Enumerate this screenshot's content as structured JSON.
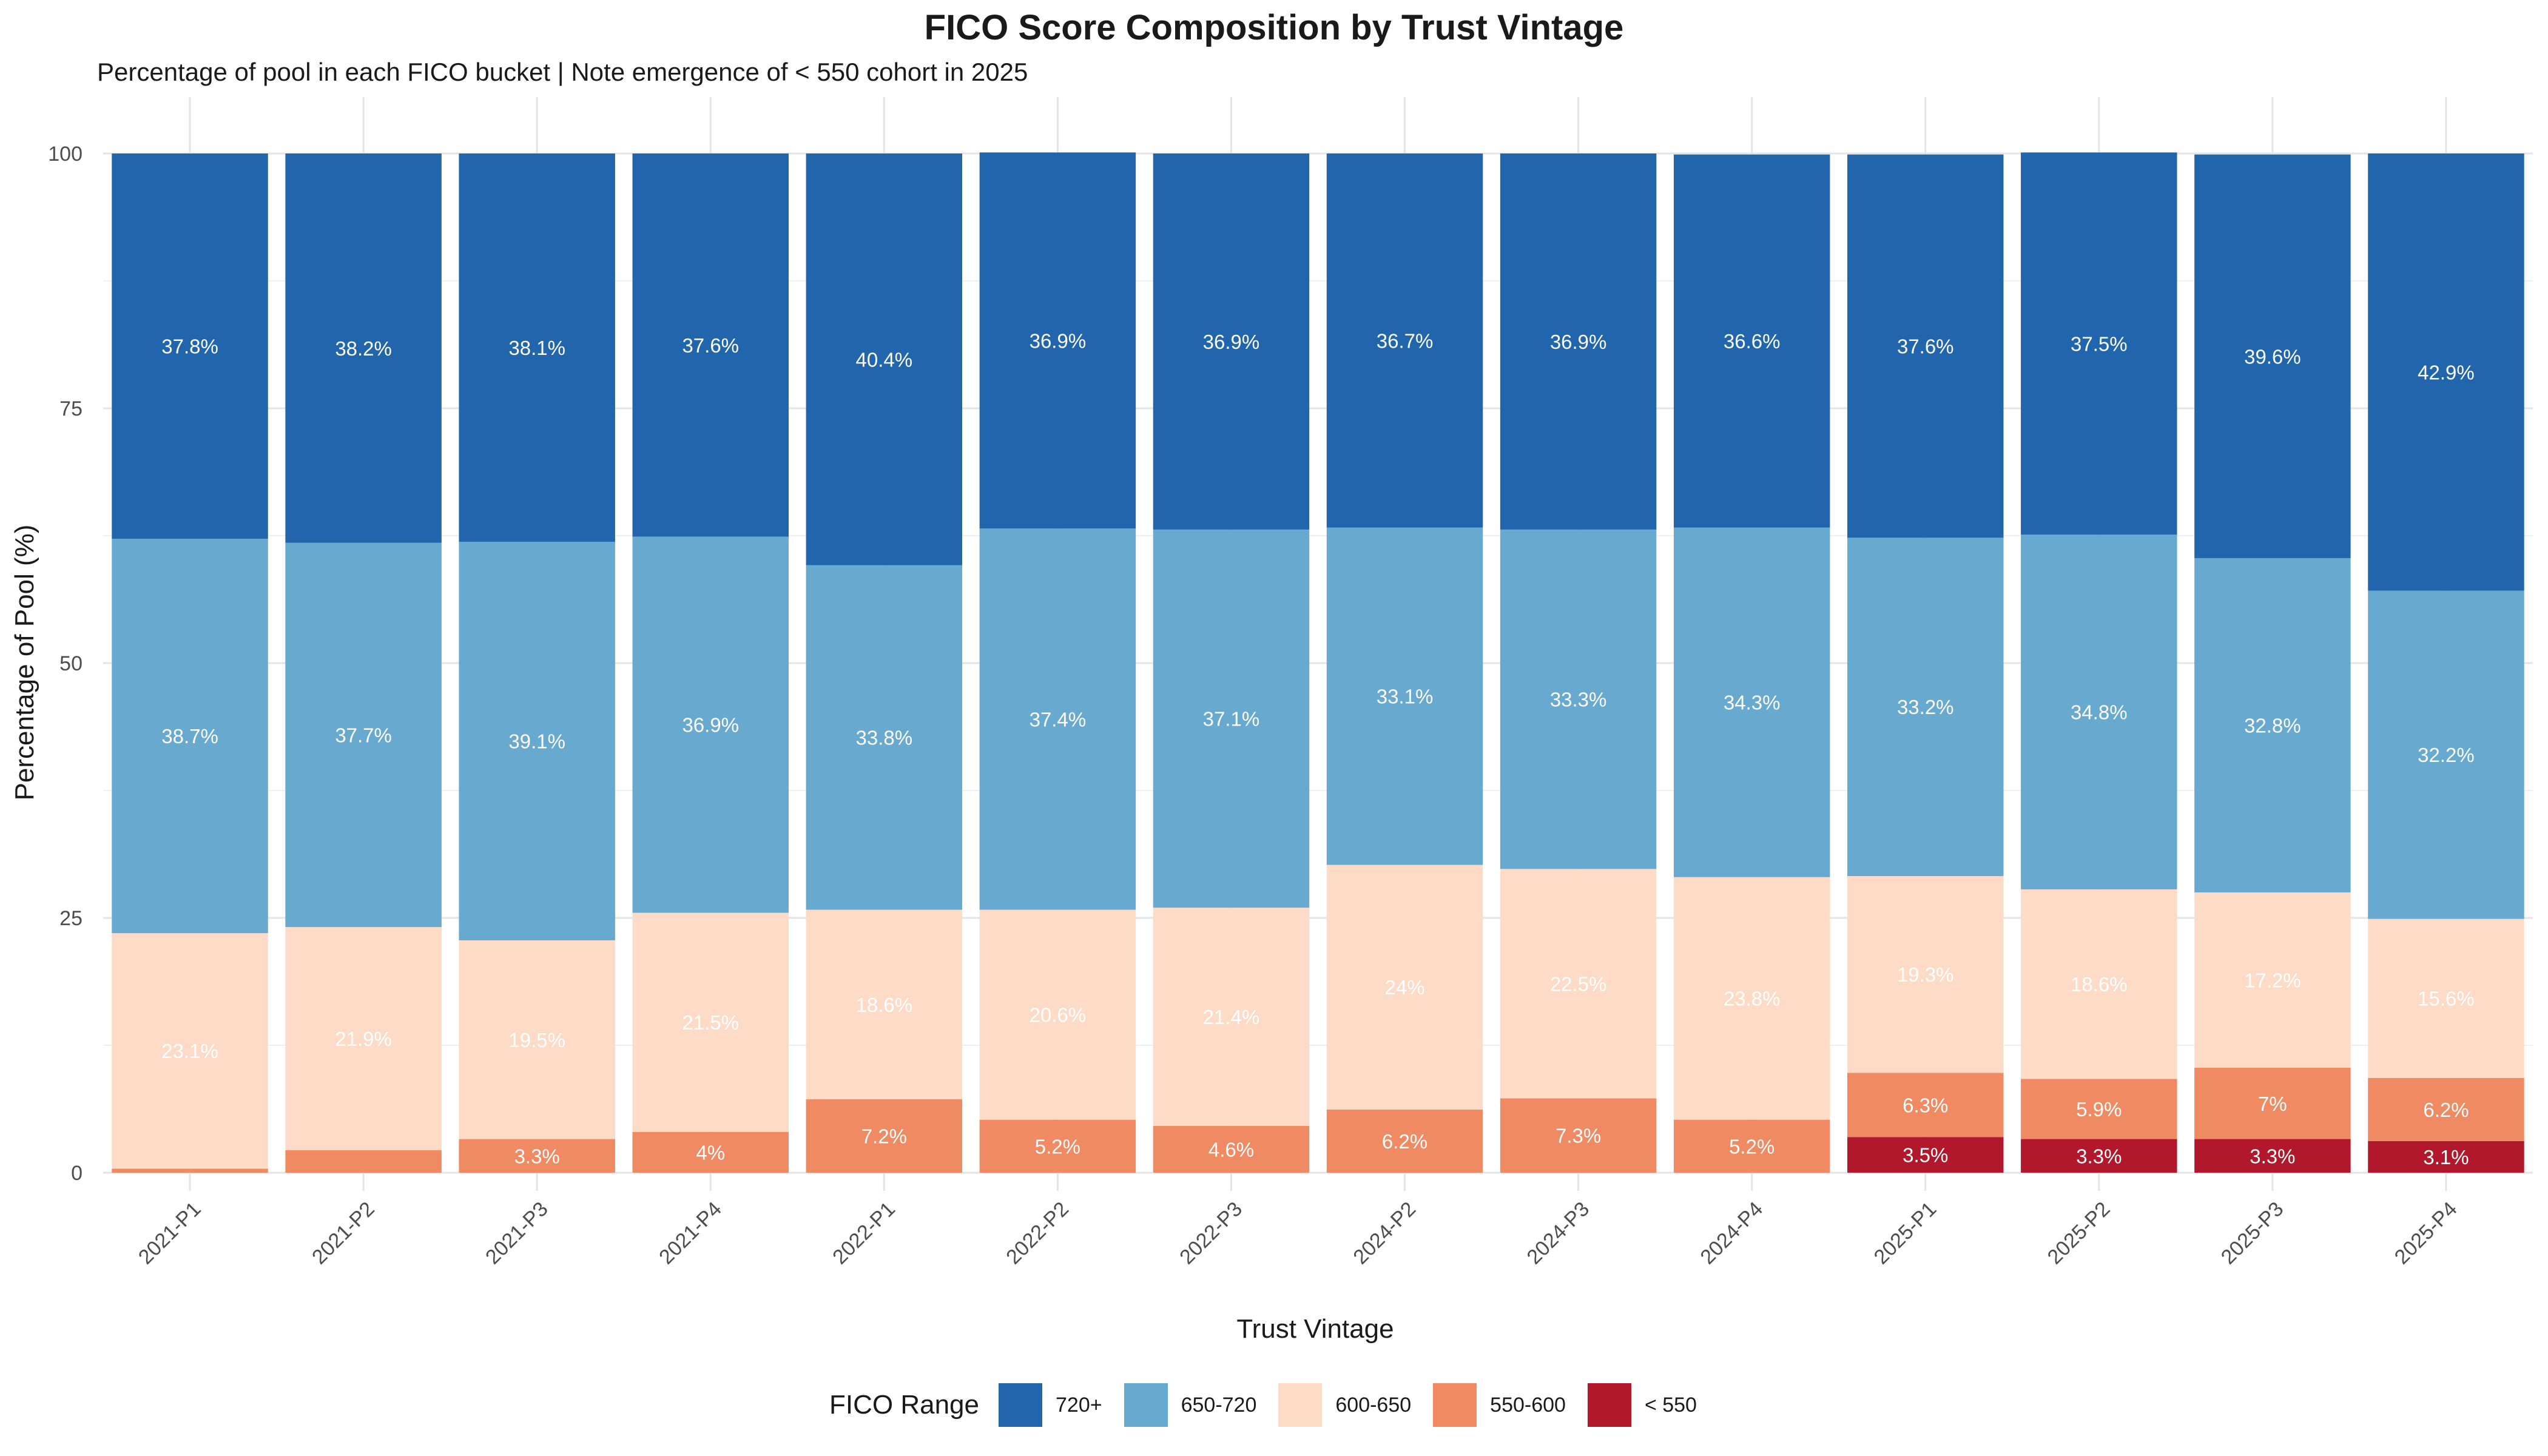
{
  "chart_data": {
    "type": "bar",
    "stacked": true,
    "title": "FICO Score Composition by Trust Vintage",
    "subtitle": "Percentage of pool in each FICO bucket | Note emergence of < 550 cohort in 2025",
    "xlabel": "Trust Vintage",
    "ylabel": "Percentage of Pool (%)",
    "ylim": [
      0,
      100
    ],
    "yticks": [
      0,
      25,
      50,
      75,
      100
    ],
    "legend_title": "FICO Range",
    "legend_position": "bottom",
    "categories": [
      "2021-P1",
      "2021-P2",
      "2021-P3",
      "2021-P4",
      "2022-P1",
      "2022-P2",
      "2022-P3",
      "2024-P2",
      "2024-P3",
      "2024-P4",
      "2025-P1",
      "2025-P2",
      "2025-P3",
      "2025-P4"
    ],
    "series": [
      {
        "name": "< 550",
        "color": "#B2182B",
        "values": [
          0,
          0,
          0,
          0,
          0,
          0,
          0,
          0,
          0,
          0,
          3.5,
          3.3,
          3.3,
          3.1
        ],
        "labels": [
          "",
          "",
          "",
          "",
          "",
          "",
          "",
          "",
          "",
          "",
          "3.5%",
          "3.3%",
          "3.3%",
          "3.1%"
        ]
      },
      {
        "name": "550-600",
        "color": "#EF8A62",
        "values": [
          0.4,
          2.2,
          3.3,
          4,
          7.2,
          5.2,
          4.6,
          6.2,
          7.3,
          5.2,
          6.3,
          5.9,
          7,
          6.2
        ],
        "labels": [
          "",
          "",
          "3.3%",
          "4%",
          "7.2%",
          "5.2%",
          "4.6%",
          "6.2%",
          "7.3%",
          "5.2%",
          "6.3%",
          "5.9%",
          "7%",
          "6.2%"
        ]
      },
      {
        "name": "600-650",
        "color": "#FDDBC7",
        "values": [
          23.1,
          21.9,
          19.5,
          21.5,
          18.6,
          20.6,
          21.4,
          24,
          22.5,
          23.8,
          19.3,
          18.6,
          17.2,
          15.6
        ],
        "labels": [
          "23.1%",
          "21.9%",
          "19.5%",
          "21.5%",
          "18.6%",
          "20.6%",
          "21.4%",
          "24%",
          "22.5%",
          "23.8%",
          "19.3%",
          "18.6%",
          "17.2%",
          "15.6%"
        ]
      },
      {
        "name": "650-720",
        "color": "#67A9CF",
        "values": [
          38.7,
          37.7,
          39.1,
          36.9,
          33.8,
          37.4,
          37.1,
          33.1,
          33.3,
          34.3,
          33.2,
          34.8,
          32.8,
          32.2
        ],
        "labels": [
          "38.7%",
          "37.7%",
          "39.1%",
          "36.9%",
          "33.8%",
          "37.4%",
          "37.1%",
          "33.1%",
          "33.3%",
          "34.3%",
          "33.2%",
          "34.8%",
          "32.8%",
          "32.2%"
        ]
      },
      {
        "name": "720+",
        "color": "#2166AC",
        "values": [
          37.8,
          38.2,
          38.1,
          37.6,
          40.4,
          36.9,
          36.9,
          36.7,
          36.9,
          36.6,
          37.6,
          37.5,
          39.6,
          42.9
        ],
        "labels": [
          "37.8%",
          "38.2%",
          "38.1%",
          "37.6%",
          "40.4%",
          "36.9%",
          "36.9%",
          "36.7%",
          "36.9%",
          "36.6%",
          "37.6%",
          "37.5%",
          "39.6%",
          "42.9%"
        ]
      }
    ],
    "legend_order": [
      "720+",
      "650-720",
      "600-650",
      "550-600",
      "< 550"
    ]
  }
}
